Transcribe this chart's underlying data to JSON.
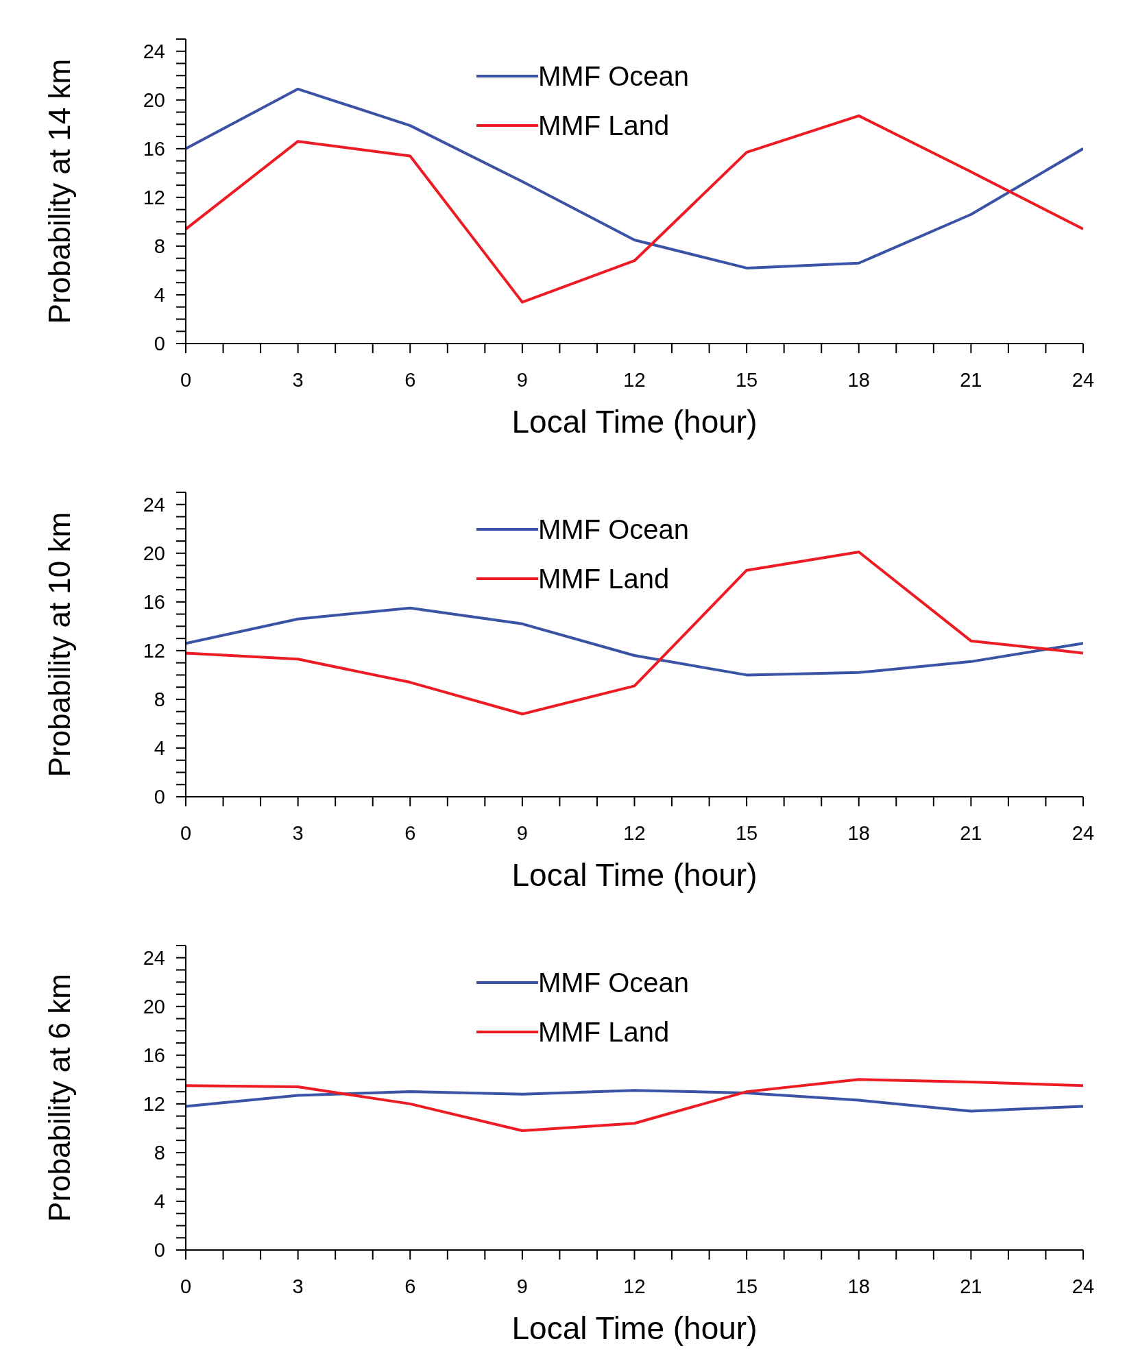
{
  "chart_data": [
    {
      "type": "line",
      "xlabel": "Local Time (hour)",
      "ylabel": "Probability at 14 km",
      "x": [
        0,
        3,
        6,
        9,
        12,
        15,
        18,
        21,
        24
      ],
      "xlim": [
        0,
        24
      ],
      "ylim": [
        0,
        25
      ],
      "legend": "top",
      "marker": "none",
      "xticks": [
        0,
        {
          "value": 1,
          "label": null
        },
        {
          "value": 2,
          "label": null
        },
        3,
        {
          "value": 4,
          "label": null
        },
        {
          "value": 5,
          "label": null
        },
        6,
        {
          "value": 7,
          "label": null
        },
        {
          "value": 8,
          "label": null
        },
        9,
        {
          "value": 10,
          "label": null
        },
        {
          "value": 11,
          "label": null
        },
        12,
        {
          "value": 13,
          "label": null
        },
        {
          "value": 14,
          "label": null
        },
        15,
        {
          "value": 16,
          "label": null
        },
        {
          "value": 17,
          "label": null
        },
        18,
        {
          "value": 19,
          "label": null
        },
        {
          "value": 20,
          "label": null
        },
        21,
        {
          "value": 22,
          "label": null
        },
        {
          "value": 23,
          "label": null
        },
        24
      ],
      "yticks": [
        0,
        {
          "value": 1,
          "label": null
        },
        {
          "value": 2,
          "label": null
        },
        {
          "value": 3,
          "label": null
        },
        4,
        {
          "value": 5,
          "label": null
        },
        {
          "value": 6,
          "label": null
        },
        {
          "value": 7,
          "label": null
        },
        8,
        {
          "value": 9,
          "label": null
        },
        {
          "value": 10,
          "label": null
        },
        {
          "value": 11,
          "label": null
        },
        12,
        {
          "value": 13,
          "label": null
        },
        {
          "value": 14,
          "label": null
        },
        {
          "value": 15,
          "label": null
        },
        16,
        {
          "value": 17,
          "label": null
        },
        {
          "value": 18,
          "label": null
        },
        {
          "value": 19,
          "label": null
        },
        20,
        {
          "value": 21,
          "label": null
        },
        {
          "value": 22,
          "label": null
        },
        {
          "value": 23,
          "label": null
        },
        24,
        {
          "value": 25,
          "label": null
        }
      ],
      "series": [
        {
          "name": "MMF Ocean",
          "color": "#3a53a4",
          "values": [
            16.0,
            20.9,
            17.9,
            13.3,
            8.5,
            6.2,
            6.6,
            10.6,
            16.0
          ]
        },
        {
          "name": "MMF Land",
          "color": "#ed1c24",
          "values": [
            9.4,
            16.6,
            15.4,
            3.4,
            6.8,
            15.7,
            18.7,
            14.1,
            9.4
          ]
        }
      ]
    },
    {
      "type": "line",
      "xlabel": "Local Time (hour)",
      "ylabel": "Probability at 10 km",
      "x": [
        0,
        3,
        6,
        9,
        12,
        15,
        18,
        21,
        24
      ],
      "xlim": [
        0,
        24
      ],
      "ylim": [
        0,
        25
      ],
      "legend": "top",
      "marker": "none",
      "xticks": [
        0,
        {
          "value": 1,
          "label": null
        },
        {
          "value": 2,
          "label": null
        },
        3,
        {
          "value": 4,
          "label": null
        },
        {
          "value": 5,
          "label": null
        },
        6,
        {
          "value": 7,
          "label": null
        },
        {
          "value": 8,
          "label": null
        },
        9,
        {
          "value": 10,
          "label": null
        },
        {
          "value": 11,
          "label": null
        },
        12,
        {
          "value": 13,
          "label": null
        },
        {
          "value": 14,
          "label": null
        },
        15,
        {
          "value": 16,
          "label": null
        },
        {
          "value": 17,
          "label": null
        },
        18,
        {
          "value": 19,
          "label": null
        },
        {
          "value": 20,
          "label": null
        },
        21,
        {
          "value": 22,
          "label": null
        },
        {
          "value": 23,
          "label": null
        },
        24
      ],
      "yticks": [
        0,
        {
          "value": 1,
          "label": null
        },
        {
          "value": 2,
          "label": null
        },
        {
          "value": 3,
          "label": null
        },
        4,
        {
          "value": 5,
          "label": null
        },
        {
          "value": 6,
          "label": null
        },
        {
          "value": 7,
          "label": null
        },
        8,
        {
          "value": 9,
          "label": null
        },
        {
          "value": 10,
          "label": null
        },
        {
          "value": 11,
          "label": null
        },
        12,
        {
          "value": 13,
          "label": null
        },
        {
          "value": 14,
          "label": null
        },
        {
          "value": 15,
          "label": null
        },
        16,
        {
          "value": 17,
          "label": null
        },
        {
          "value": 18,
          "label": null
        },
        {
          "value": 19,
          "label": null
        },
        20,
        {
          "value": 21,
          "label": null
        },
        {
          "value": 22,
          "label": null
        },
        {
          "value": 23,
          "label": null
        },
        24,
        {
          "value": 25,
          "label": null
        }
      ],
      "series": [
        {
          "name": "MMF Ocean",
          "color": "#3a53a4",
          "values": [
            12.6,
            14.6,
            15.5,
            14.2,
            11.6,
            10.0,
            10.2,
            11.1,
            12.6
          ]
        },
        {
          "name": "MMF Land",
          "color": "#ed1c24",
          "values": [
            11.8,
            11.3,
            9.4,
            6.8,
            9.1,
            18.6,
            20.1,
            12.8,
            11.8
          ]
        }
      ]
    },
    {
      "type": "line",
      "xlabel": "Local Time (hour)",
      "ylabel": "Probability at 6 km",
      "x": [
        0,
        3,
        6,
        9,
        12,
        15,
        18,
        21,
        24
      ],
      "xlim": [
        0,
        24
      ],
      "ylim": [
        0,
        25
      ],
      "legend": "top",
      "marker": "none",
      "xticks": [
        0,
        {
          "value": 1,
          "label": null
        },
        {
          "value": 2,
          "label": null
        },
        3,
        {
          "value": 4,
          "label": null
        },
        {
          "value": 5,
          "label": null
        },
        6,
        {
          "value": 7,
          "label": null
        },
        {
          "value": 8,
          "label": null
        },
        9,
        {
          "value": 10,
          "label": null
        },
        {
          "value": 11,
          "label": null
        },
        12,
        {
          "value": 13,
          "label": null
        },
        {
          "value": 14,
          "label": null
        },
        15,
        {
          "value": 16,
          "label": null
        },
        {
          "value": 17,
          "label": null
        },
        18,
        {
          "value": 19,
          "label": null
        },
        {
          "value": 20,
          "label": null
        },
        21,
        {
          "value": 22,
          "label": null
        },
        {
          "value": 23,
          "label": null
        },
        24
      ],
      "yticks": [
        0,
        {
          "value": 1,
          "label": null
        },
        {
          "value": 2,
          "label": null
        },
        {
          "value": 3,
          "label": null
        },
        4,
        {
          "value": 5,
          "label": null
        },
        {
          "value": 6,
          "label": null
        },
        {
          "value": 7,
          "label": null
        },
        8,
        {
          "value": 9,
          "label": null
        },
        {
          "value": 10,
          "label": null
        },
        {
          "value": 11,
          "label": null
        },
        12,
        {
          "value": 13,
          "label": null
        },
        {
          "value": 14,
          "label": null
        },
        {
          "value": 15,
          "label": null
        },
        16,
        {
          "value": 17,
          "label": null
        },
        {
          "value": 18,
          "label": null
        },
        {
          "value": 19,
          "label": null
        },
        20,
        {
          "value": 21,
          "label": null
        },
        {
          "value": 22,
          "label": null
        },
        {
          "value": 23,
          "label": null
        },
        24,
        {
          "value": 25,
          "label": null
        }
      ],
      "series": [
        {
          "name": "MMF Ocean",
          "color": "#3a53a4",
          "values": [
            11.8,
            12.7,
            13.0,
            12.8,
            13.1,
            12.9,
            12.3,
            11.4,
            11.8
          ]
        },
        {
          "name": "MMF Land",
          "color": "#ed1c24",
          "values": [
            13.5,
            13.4,
            12.0,
            9.8,
            10.4,
            13.0,
            14.0,
            13.8,
            13.5
          ]
        }
      ]
    }
  ]
}
